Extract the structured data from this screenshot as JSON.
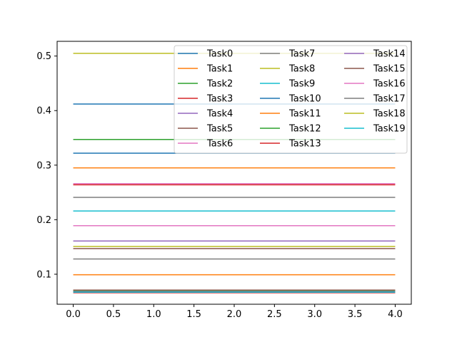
{
  "chart_data": {
    "type": "line",
    "title": "",
    "xlabel": "",
    "ylabel": "",
    "xlim": [
      -0.2,
      4.2
    ],
    "ylim": [
      0.045,
      0.527
    ],
    "xticks": [
      0.0,
      0.5,
      1.0,
      1.5,
      2.0,
      2.5,
      3.0,
      3.5,
      4.0
    ],
    "xtick_labels": [
      "0.0",
      "0.5",
      "1.0",
      "1.5",
      "2.0",
      "2.5",
      "3.0",
      "3.5",
      "4.0"
    ],
    "yticks": [
      0.1,
      0.2,
      0.3,
      0.4,
      0.5
    ],
    "ytick_labels": [
      "0.1",
      "0.2",
      "0.3",
      "0.4",
      "0.5"
    ],
    "grid": false,
    "legend": {
      "placement": "upper-right",
      "columns": 3
    },
    "x": [
      0,
      1,
      2,
      3,
      4
    ],
    "series": [
      {
        "name": "Task0",
        "color": "#1f77b4",
        "values": [
          0.412,
          0.412,
          0.412,
          0.412,
          0.412
        ]
      },
      {
        "name": "Task1",
        "color": "#ff7f0e",
        "values": [
          0.099,
          0.099,
          0.099,
          0.099,
          0.099
        ]
      },
      {
        "name": "Task2",
        "color": "#2ca02c",
        "values": [
          0.347,
          0.347,
          0.347,
          0.347,
          0.347
        ]
      },
      {
        "name": "Task3",
        "color": "#d62728",
        "values": [
          0.264,
          0.264,
          0.264,
          0.264,
          0.264
        ]
      },
      {
        "name": "Task4",
        "color": "#9467bd",
        "values": [
          0.161,
          0.161,
          0.161,
          0.161,
          0.161
        ]
      },
      {
        "name": "Task5",
        "color": "#8c564b",
        "values": [
          0.071,
          0.071,
          0.071,
          0.071,
          0.071
        ]
      },
      {
        "name": "Task6",
        "color": "#e377c2",
        "values": [
          0.189,
          0.189,
          0.189,
          0.189,
          0.189
        ]
      },
      {
        "name": "Task7",
        "color": "#7f7f7f",
        "values": [
          0.241,
          0.241,
          0.241,
          0.241,
          0.241
        ]
      },
      {
        "name": "Task8",
        "color": "#bcbd22",
        "values": [
          0.505,
          0.505,
          0.505,
          0.505,
          0.505
        ]
      },
      {
        "name": "Task9",
        "color": "#17becf",
        "values": [
          0.216,
          0.216,
          0.216,
          0.216,
          0.216
        ]
      },
      {
        "name": "Task10",
        "color": "#1f77b4",
        "values": [
          0.322,
          0.322,
          0.322,
          0.322,
          0.322
        ]
      },
      {
        "name": "Task11",
        "color": "#ff7f0e",
        "values": [
          0.295,
          0.295,
          0.295,
          0.295,
          0.295
        ]
      },
      {
        "name": "Task12",
        "color": "#2ca02c",
        "values": [
          0.069,
          0.069,
          0.069,
          0.069,
          0.069
        ]
      },
      {
        "name": "Task13",
        "color": "#d62728",
        "values": [
          0.066,
          0.066,
          0.066,
          0.066,
          0.066
        ]
      },
      {
        "name": "Task14",
        "color": "#9467bd",
        "values": [
          0.068,
          0.068,
          0.068,
          0.068,
          0.068
        ]
      },
      {
        "name": "Task15",
        "color": "#8c564b",
        "values": [
          0.147,
          0.147,
          0.147,
          0.147,
          0.147
        ]
      },
      {
        "name": "Task16",
        "color": "#e377c2",
        "values": [
          0.266,
          0.266,
          0.266,
          0.266,
          0.266
        ]
      },
      {
        "name": "Task17",
        "color": "#7f7f7f",
        "values": [
          0.128,
          0.128,
          0.128,
          0.128,
          0.128
        ]
      },
      {
        "name": "Task18",
        "color": "#bcbd22",
        "values": [
          0.151,
          0.151,
          0.151,
          0.151,
          0.151
        ]
      },
      {
        "name": "Task19",
        "color": "#17becf",
        "values": [
          0.067,
          0.067,
          0.067,
          0.067,
          0.067
        ]
      }
    ]
  }
}
